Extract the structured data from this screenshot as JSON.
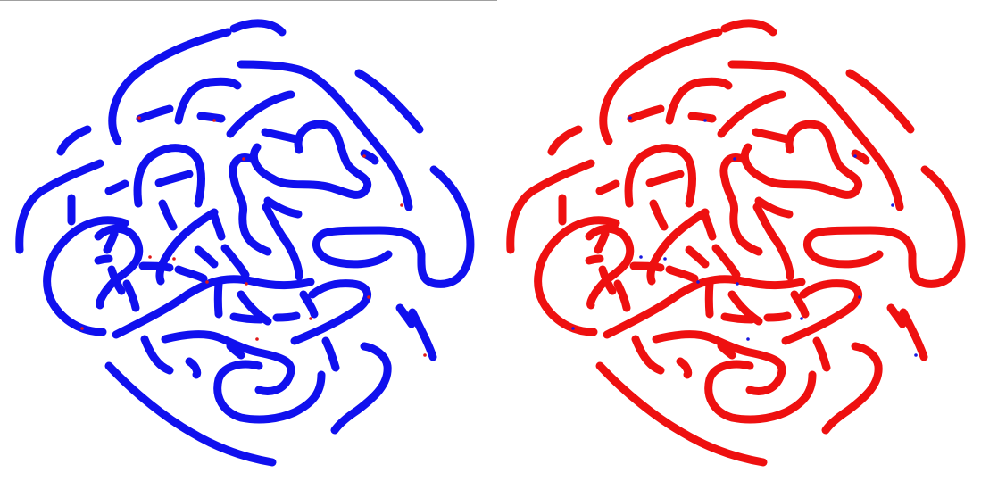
{
  "panels": [
    {
      "name": "left-pattern",
      "stroke_color": "#1010ee",
      "speckle_color": "#e01818"
    },
    {
      "name": "right-pattern",
      "stroke_color": "#ee1010",
      "speckle_color": "#1818e0"
    }
  ],
  "stroke_width": 9
}
